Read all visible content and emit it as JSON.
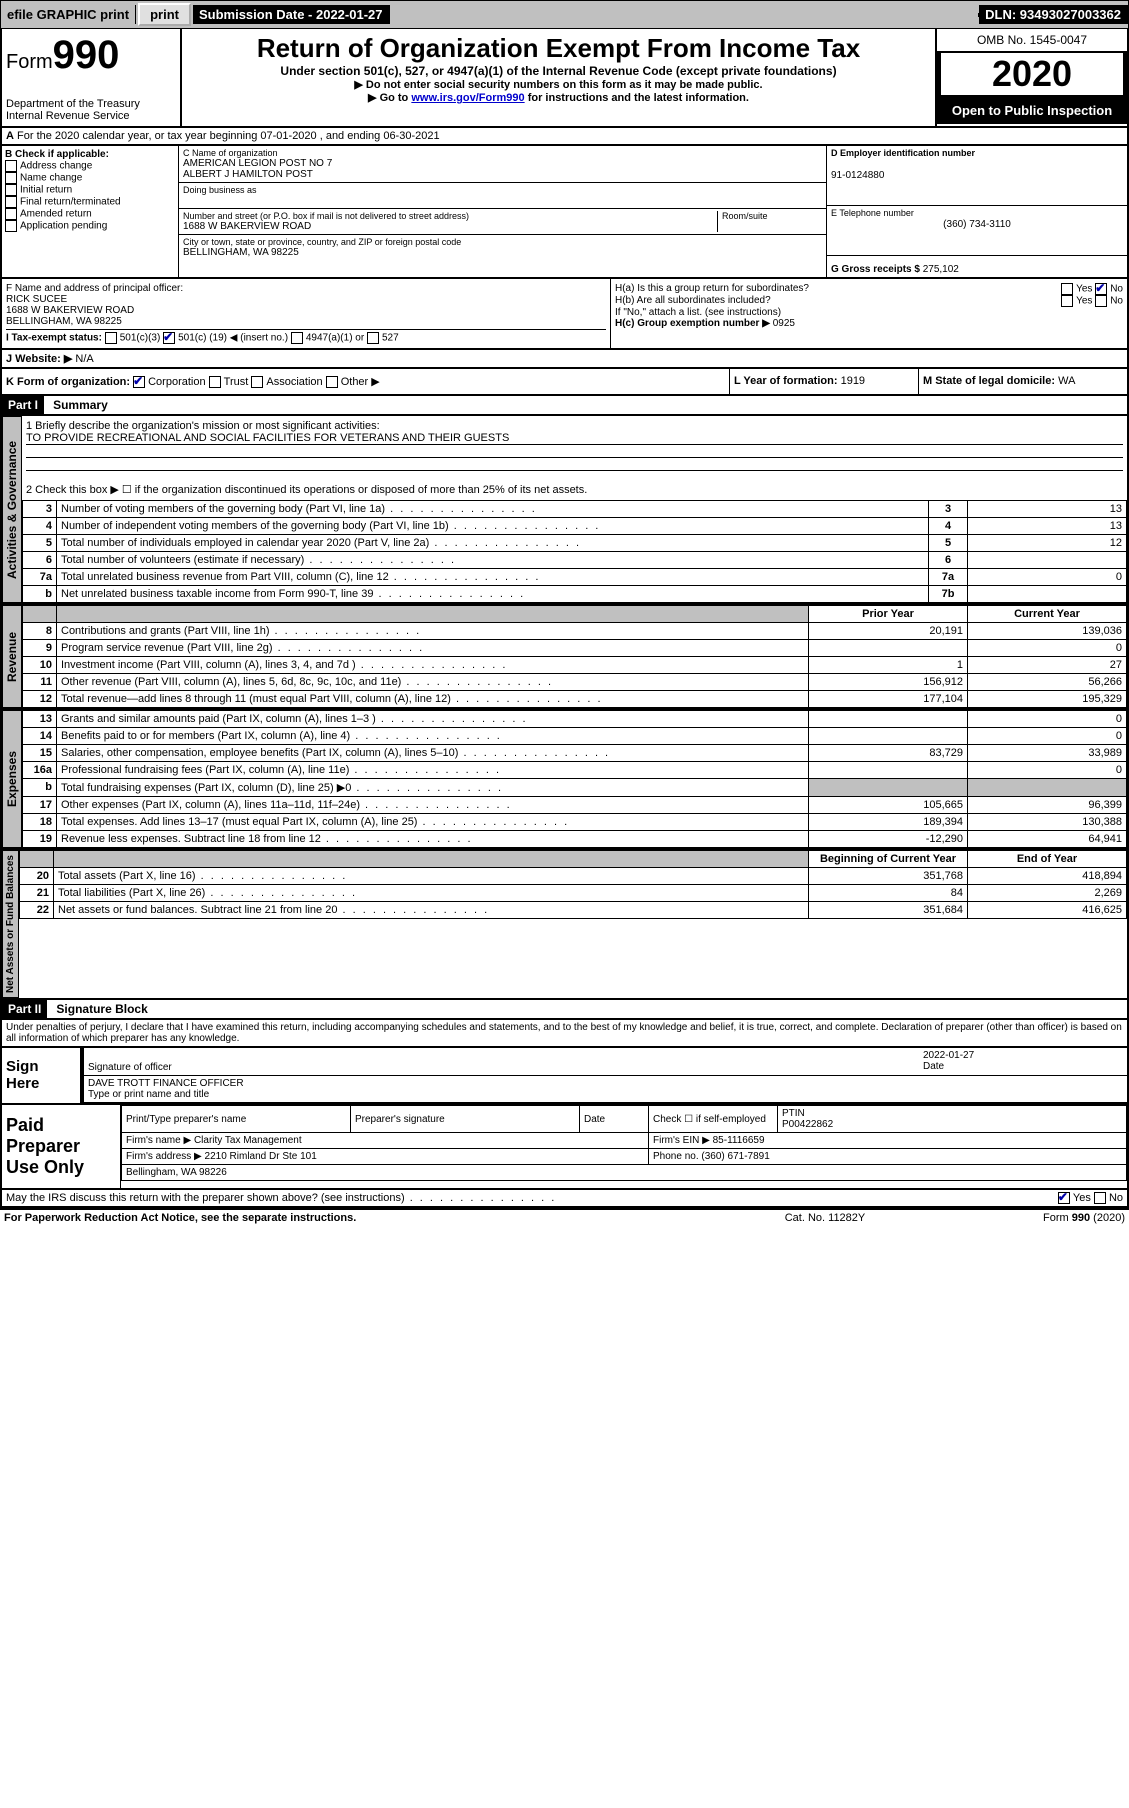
{
  "topbar": {
    "efile": "efile GRAPHIC print",
    "submission": "Submission Date - 2022-01-27",
    "dln": "DLN: 93493027003362"
  },
  "header": {
    "form_label": "Form",
    "form_no": "990",
    "dept1": "Department of the Treasury",
    "dept2": "Internal Revenue Service",
    "title": "Return of Organization Exempt From Income Tax",
    "sub1": "Under section 501(c), 527, or 4947(a)(1) of the Internal Revenue Code (except private foundations)",
    "sub2": "▶ Do not enter social security numbers on this form as it may be made public.",
    "sub3_pre": "▶ Go to ",
    "sub3_link": "www.irs.gov/Form990",
    "sub3_post": " for instructions and the latest information.",
    "omb": "OMB No. 1545-0047",
    "year": "2020",
    "pub": "Open to Public Inspection"
  },
  "lineA": "For the 2020 calendar year, or tax year beginning 07-01-2020    , and ending 06-30-2021",
  "boxB": {
    "hdr": "B Check if applicable:",
    "items": [
      "Address change",
      "Name change",
      "Initial return",
      "Final return/terminated",
      "Amended return",
      "Application pending"
    ]
  },
  "boxC": {
    "name_lbl": "C Name of organization",
    "name1": "AMERICAN LEGION POST NO 7",
    "name2": "ALBERT J HAMILTON POST",
    "dba_lbl": "Doing business as",
    "addr_lbl": "Number and street (or P.O. box if mail is not delivered to street address)",
    "room_lbl": "Room/suite",
    "addr": "1688 W BAKERVIEW ROAD",
    "city_lbl": "City or town, state or province, country, and ZIP or foreign postal code",
    "city": "BELLINGHAM, WA  98225"
  },
  "boxD": {
    "lbl": "D Employer identification number",
    "val": "91-0124880"
  },
  "boxE": {
    "lbl": "E Telephone number",
    "val": "(360) 734-3110"
  },
  "boxG": {
    "lbl": "G Gross receipts $",
    "val": "275,102"
  },
  "boxF": {
    "lbl": "F  Name and address of principal officer:",
    "name": "RICK SUCEE",
    "addr1": "1688 W BAKERVIEW ROAD",
    "addr2": "BELLINGHAM, WA  98225"
  },
  "boxH": {
    "a_lbl": "H(a)  Is this a group return for subordinates?",
    "b_lbl": "H(b)  Are all subordinates included?",
    "note": "If \"No,\" attach a list. (see instructions)",
    "c_lbl": "H(c)  Group exemption number ▶",
    "c_val": "0925",
    "yes": "Yes",
    "no": "No"
  },
  "boxI": {
    "lbl": "I    Tax-exempt status:",
    "c3": "501(c)(3)",
    "c": "501(c) (",
    "c_num": "19",
    "c_end": ") ◀ (insert no.)",
    "a47": "4947(a)(1) or",
    "s527": "527"
  },
  "boxJ": {
    "lbl": "J   Website: ▶",
    "val": "N/A"
  },
  "boxK": {
    "lbl": "K Form of organization:",
    "corp": "Corporation",
    "trust": "Trust",
    "assoc": "Association",
    "other": "Other ▶"
  },
  "boxL": {
    "lbl": "L Year of formation:",
    "val": "1919"
  },
  "boxM": {
    "lbl": "M State of legal domicile:",
    "val": "WA"
  },
  "part1": {
    "hdr": "Part I",
    "title": "Summary"
  },
  "governance": {
    "vlabel": "Activities & Governance",
    "l1_lbl": "1   Briefly describe the organization's mission or most significant activities:",
    "l1_val": "TO PROVIDE RECREATIONAL AND SOCIAL FACILITIES FOR VETERANS AND THEIR GUESTS",
    "l2": "2   Check this box ▶ ☐  if the organization discontinued its operations or disposed of more than 25% of its net assets.",
    "rows": [
      {
        "n": "3",
        "t": "Number of voting members of the governing body (Part VI, line 1a)",
        "b": "3",
        "v": "13"
      },
      {
        "n": "4",
        "t": "Number of independent voting members of the governing body (Part VI, line 1b)",
        "b": "4",
        "v": "13"
      },
      {
        "n": "5",
        "t": "Total number of individuals employed in calendar year 2020 (Part V, line 2a)",
        "b": "5",
        "v": "12"
      },
      {
        "n": "6",
        "t": "Total number of volunteers (estimate if necessary)",
        "b": "6",
        "v": ""
      },
      {
        "n": "7a",
        "t": "Total unrelated business revenue from Part VIII, column (C), line 12",
        "b": "7a",
        "v": "0"
      },
      {
        "n": "b",
        "t": "Net unrelated business taxable income from Form 990-T, line 39",
        "b": "7b",
        "v": ""
      }
    ]
  },
  "revenue": {
    "vlabel": "Revenue",
    "col1": "Prior Year",
    "col2": "Current Year",
    "rows": [
      {
        "n": "8",
        "t": "Contributions and grants (Part VIII, line 1h)",
        "p": "20,191",
        "c": "139,036"
      },
      {
        "n": "9",
        "t": "Program service revenue (Part VIII, line 2g)",
        "p": "",
        "c": "0"
      },
      {
        "n": "10",
        "t": "Investment income (Part VIII, column (A), lines 3, 4, and 7d )",
        "p": "1",
        "c": "27"
      },
      {
        "n": "11",
        "t": "Other revenue (Part VIII, column (A), lines 5, 6d, 8c, 9c, 10c, and 11e)",
        "p": "156,912",
        "c": "56,266"
      },
      {
        "n": "12",
        "t": "Total revenue—add lines 8 through 11 (must equal Part VIII, column (A), line 12)",
        "p": "177,104",
        "c": "195,329"
      }
    ]
  },
  "expenses": {
    "vlabel": "Expenses",
    "rows": [
      {
        "n": "13",
        "t": "Grants and similar amounts paid (Part IX, column (A), lines 1–3 )",
        "p": "",
        "c": "0"
      },
      {
        "n": "14",
        "t": "Benefits paid to or for members (Part IX, column (A), line 4)",
        "p": "",
        "c": "0"
      },
      {
        "n": "15",
        "t": "Salaries, other compensation, employee benefits (Part IX, column (A), lines 5–10)",
        "p": "83,729",
        "c": "33,989"
      },
      {
        "n": "16a",
        "t": "Professional fundraising fees (Part IX, column (A), line 11e)",
        "p": "",
        "c": "0"
      },
      {
        "n": "b",
        "t": "Total fundraising expenses (Part IX, column (D), line 25)  ▶0",
        "p": "SHADE",
        "c": "SHADE"
      },
      {
        "n": "17",
        "t": "Other expenses (Part IX, column (A), lines 11a–11d, 11f–24e)",
        "p": "105,665",
        "c": "96,399"
      },
      {
        "n": "18",
        "t": "Total expenses. Add lines 13–17 (must equal Part IX, column (A), line 25)",
        "p": "189,394",
        "c": "130,388"
      },
      {
        "n": "19",
        "t": "Revenue less expenses. Subtract line 18 from line 12",
        "p": "-12,290",
        "c": "64,941"
      }
    ]
  },
  "netassets": {
    "vlabel": "Net Assets or Fund Balances",
    "col1": "Beginning of Current Year",
    "col2": "End of Year",
    "rows": [
      {
        "n": "20",
        "t": "Total assets (Part X, line 16)",
        "p": "351,768",
        "c": "418,894"
      },
      {
        "n": "21",
        "t": "Total liabilities (Part X, line 26)",
        "p": "84",
        "c": "2,269"
      },
      {
        "n": "22",
        "t": "Net assets or fund balances. Subtract line 21 from line 20",
        "p": "351,684",
        "c": "416,625"
      }
    ]
  },
  "part2": {
    "hdr": "Part II",
    "title": "Signature Block"
  },
  "perjury": "Under penalties of perjury, I declare that I have examined this return, including accompanying schedules and statements, and to the best of my knowledge and belief, it is true, correct, and complete. Declaration of preparer (other than officer) is based on all information of which preparer has any knowledge.",
  "sign": {
    "here": "Sign Here",
    "sig_lbl": "Signature of officer",
    "date_lbl": "Date",
    "date_val": "2022-01-27",
    "name": "DAVE TROTT FINANCE OFFICER",
    "name_lbl": "Type or print name and title"
  },
  "prep": {
    "hdr": "Paid Preparer Use Only",
    "r1c1": "Print/Type preparer's name",
    "r1c2": "Preparer's signature",
    "r1c3": "Date",
    "r1c4_lbl": "Check ☐ if self-employed",
    "r1c5_lbl": "PTIN",
    "r1c5_val": "P00422862",
    "r2c1": "Firm's name    ▶",
    "r2c1v": "Clarity Tax Management",
    "r2c2": "Firm's EIN  ▶",
    "r2c2v": "85-1116659",
    "r3c1": "Firm's address ▶",
    "r3c1v": "2210 Rimland Dr Ste 101",
    "r3c2": "Phone no.",
    "r3c2v": "(360) 671-7891",
    "r4": "Bellingham, WA  98226"
  },
  "discuss": {
    "q": "May the IRS discuss this return with the preparer shown above? (see instructions)",
    "yes": "Yes",
    "no": "No"
  },
  "footer": {
    "l": "For Paperwork Reduction Act Notice, see the separate instructions.",
    "m": "Cat. No. 11282Y",
    "r": "Form 990 (2020)"
  }
}
